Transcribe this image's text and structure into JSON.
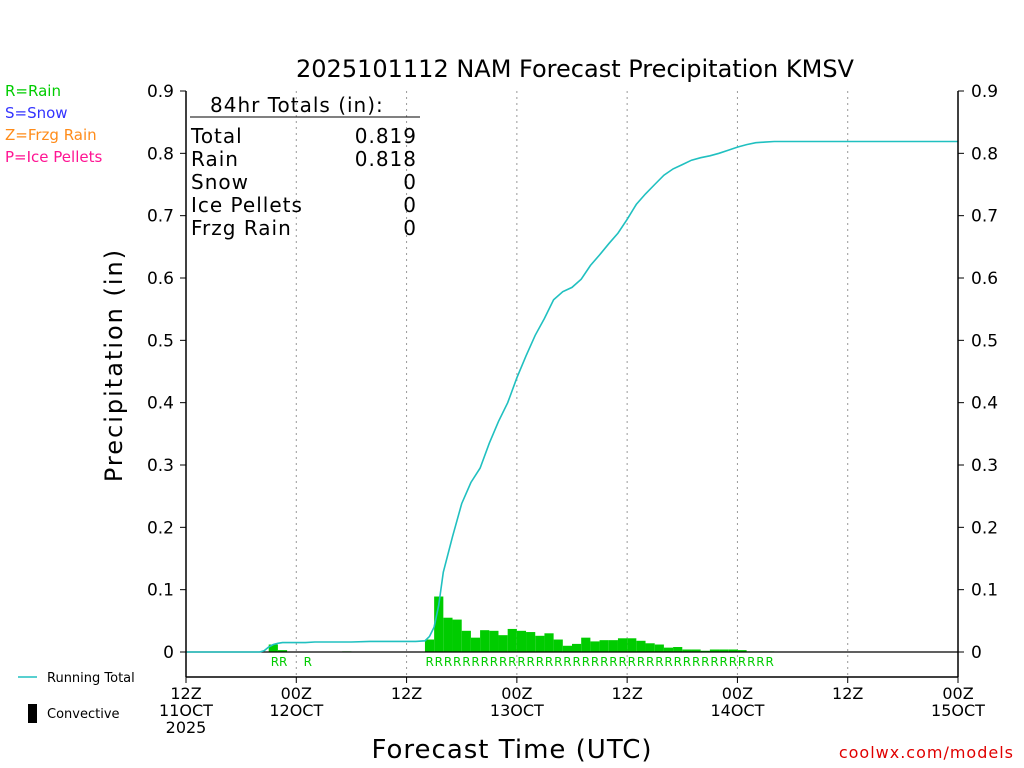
{
  "chart_data": {
    "type": "bar",
    "title": "2025101112 NAM Forecast Precipitation KMSV",
    "xlabel": "Forecast Time (UTC)",
    "ylabel": "Precipitation (in)",
    "ylim": [
      0,
      0.9
    ],
    "yticks": [
      0,
      0.1,
      0.2,
      0.3,
      0.4,
      0.5,
      0.6,
      0.7,
      0.8,
      0.9
    ],
    "ytick_labels": [
      "0",
      "0.1",
      "0.2",
      "0.3",
      "0.4",
      "0.5",
      "0.6",
      "0.7",
      "0.8",
      "0.9"
    ],
    "xlim_hours": [
      0,
      84
    ],
    "x_ticks": [
      {
        "hour": 0,
        "lines": [
          "12Z",
          "11OCT",
          "2025"
        ]
      },
      {
        "hour": 12,
        "lines": [
          "00Z",
          "12OCT"
        ]
      },
      {
        "hour": 24,
        "lines": [
          "12Z"
        ]
      },
      {
        "hour": 36,
        "lines": [
          "00Z",
          "13OCT"
        ]
      },
      {
        "hour": 48,
        "lines": [
          "12Z"
        ]
      },
      {
        "hour": 60,
        "lines": [
          "00Z",
          "14OCT"
        ]
      },
      {
        "hour": 72,
        "lines": [
          "12Z"
        ]
      },
      {
        "hour": 84,
        "lines": [
          "00Z",
          "15OCT"
        ]
      }
    ],
    "grid_hours": [
      12,
      24,
      36,
      48,
      60,
      72
    ],
    "bar_width_hours": 1,
    "bars": {
      "start_hour": 0,
      "values": [
        0,
        0,
        0,
        0,
        0,
        0,
        0,
        0,
        0,
        0.012,
        0.003,
        0,
        0,
        0,
        0,
        0,
        0,
        0.001,
        0,
        0,
        0,
        0,
        0,
        0,
        0,
        0,
        0,
        0,
        0,
        0.001,
        0,
        0,
        0,
        0,
        0,
        0,
        0,
        0,
        0,
        0,
        0,
        0,
        0,
        0,
        0,
        0,
        0,
        0,
        0.001,
        0,
        0,
        0.001,
        0,
        0,
        0,
        0,
        0,
        0,
        0,
        0,
        0,
        0,
        0,
        0,
        0,
        0,
        0,
        0,
        0,
        0,
        0,
        0,
        0,
        0,
        0,
        0,
        0,
        0,
        0,
        0,
        0,
        0,
        0,
        0
      ]
    },
    "bars_storm": {
      "start_hour": 26,
      "values": [
        0.02,
        0.089,
        0.055,
        0.052,
        0.034,
        0.023,
        0.035,
        0.034,
        0.027,
        0.037,
        0.034,
        0.032,
        0.026,
        0.03,
        0.02,
        0.01,
        0.013,
        0.023,
        0.017,
        0.019,
        0.019,
        0.022,
        0.022,
        0.018,
        0.014,
        0.012,
        0.007,
        0.008,
        0.004,
        0.004,
        0.002,
        0.004,
        0.004,
        0.004,
        0.003,
        0.001,
        0.001,
        0.001
      ]
    },
    "running_total": {
      "hours": [
        0,
        3,
        6,
        7,
        8,
        8.5,
        9,
        9.5,
        10,
        10.5,
        11,
        12,
        13,
        14,
        16,
        18,
        20,
        22,
        24,
        25,
        26,
        26.5,
        27,
        27.5,
        28,
        29,
        30,
        31,
        32,
        33,
        34,
        35,
        36,
        37,
        38,
        39,
        40,
        41,
        42,
        43,
        44,
        45,
        46,
        47,
        48,
        49,
        50,
        51,
        52,
        53,
        54,
        55,
        56,
        57,
        58,
        59,
        60,
        61,
        62,
        63,
        64,
        65,
        66,
        67,
        68,
        70,
        72,
        76,
        80,
        84
      ],
      "values": [
        0,
        0,
        0,
        0,
        0,
        0.002,
        0.008,
        0.012,
        0.014,
        0.015,
        0.015,
        0.015,
        0.015,
        0.016,
        0.016,
        0.016,
        0.017,
        0.017,
        0.017,
        0.017,
        0.018,
        0.025,
        0.04,
        0.075,
        0.128,
        0.185,
        0.238,
        0.272,
        0.295,
        0.335,
        0.37,
        0.4,
        0.44,
        0.475,
        0.508,
        0.535,
        0.565,
        0.578,
        0.585,
        0.598,
        0.62,
        0.637,
        0.655,
        0.672,
        0.694,
        0.718,
        0.735,
        0.75,
        0.765,
        0.775,
        0.782,
        0.789,
        0.793,
        0.796,
        0.8,
        0.805,
        0.81,
        0.814,
        0.817,
        0.818,
        0.819,
        0.819,
        0.819,
        0.819,
        0.819,
        0.819,
        0.819,
        0.819,
        0.819,
        0.819
      ]
    },
    "ptype_labels": {
      "rr_left": "RR",
      "r_mid": "R",
      "storm_hour_start": 26,
      "storm_count": 38,
      "storm_char": "R"
    },
    "totals": {
      "heading": "84hr Totals (in):",
      "rows": [
        {
          "label": "Total",
          "value": "0.819"
        },
        {
          "label": "Rain",
          "value": "0.818"
        },
        {
          "label": "Snow",
          "value": "0"
        },
        {
          "label": "Ice Pellets",
          "value": "0"
        },
        {
          "label": "Frzg Rain",
          "value": "0"
        }
      ]
    },
    "ptype_legend": [
      {
        "text": "R=Rain",
        "color": "#00cc00"
      },
      {
        "text": "S=Snow",
        "color": "#3333ff"
      },
      {
        "text": "Z=Frzg Rain",
        "color": "#ff8c1a"
      },
      {
        "text": "P=Ice Pellets",
        "color": "#ff1493"
      }
    ],
    "legend": {
      "running_total": "Running Total",
      "convective": "Convective"
    },
    "colors": {
      "bar": "#00cc00",
      "line": "#20c0c0",
      "axis": "#000000",
      "grid": "#999999"
    }
  },
  "watermark": "coolwx.com/models"
}
